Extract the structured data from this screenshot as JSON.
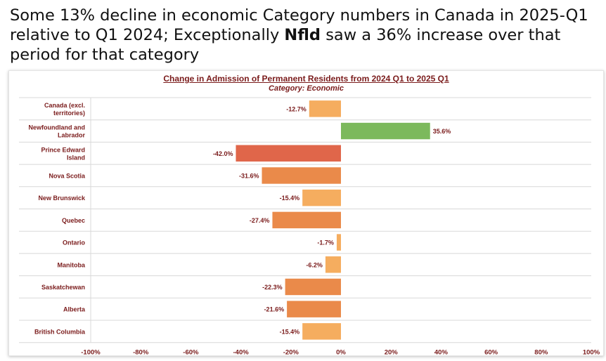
{
  "headline": {
    "part1": "Some 13% decline in economic Category numbers in Canada in 2025-Q1 relative to Q1 2024; Exceptionally ",
    "bold": "Nfld",
    "part2": " saw a 36% increase over that period for that category"
  },
  "chart_data": {
    "type": "bar",
    "orientation": "horizontal",
    "title": "Change in Admission of Permanent Residents from 2024 Q1 to 2025 Q1",
    "subtitle": "Category: Economic",
    "categories": [
      "Canada (excl. territories)",
      "Newfoundland and Labrador",
      "Prince Edward Island",
      "Nova Scotia",
      "New Brunswick",
      "Quebec",
      "Ontario",
      "Manitoba",
      "Saskatchewan",
      "Alberta",
      "British Columbia"
    ],
    "category_lines": [
      [
        "Canada (excl.",
        "territories)"
      ],
      [
        "Newfoundland and",
        "Labrador"
      ],
      [
        "Prince Edward",
        "Island"
      ],
      [
        "Nova Scotia"
      ],
      [
        "New Brunswick"
      ],
      [
        "Quebec"
      ],
      [
        "Ontario"
      ],
      [
        "Manitoba"
      ],
      [
        "Saskatchewan"
      ],
      [
        "Alberta"
      ],
      [
        "British Columbia"
      ]
    ],
    "values": [
      -12.7,
      35.6,
      -42.0,
      -31.6,
      -15.4,
      -27.4,
      -1.7,
      -6.2,
      -22.3,
      -21.6,
      -15.4
    ],
    "data_labels": [
      "-12.7%",
      "35.6%",
      "-42.0%",
      "-31.6%",
      "-15.4%",
      "-27.4%",
      "-1.7%",
      "-6.2%",
      "-22.3%",
      "-21.6%",
      "-15.4%"
    ],
    "xlim": [
      -100,
      100
    ],
    "xticks": [
      -100,
      -80,
      -60,
      -40,
      -20,
      0,
      20,
      40,
      60,
      80,
      100
    ],
    "xtick_labels": [
      "-100%",
      "-80%",
      "-60%",
      "-40%",
      "-20%",
      "0%",
      "20%",
      "40%",
      "60%",
      "80%",
      "100%"
    ],
    "legend": "none",
    "colors": {
      "positive": "#7cb95c",
      "very_negative": "#e0664a",
      "negative": "#ea8a4a",
      "mild_negative": "#f5ad5f",
      "label_text": "#7a1b1b",
      "axis_text": "#7a1b1b",
      "grid": "#d8d8d8"
    }
  }
}
